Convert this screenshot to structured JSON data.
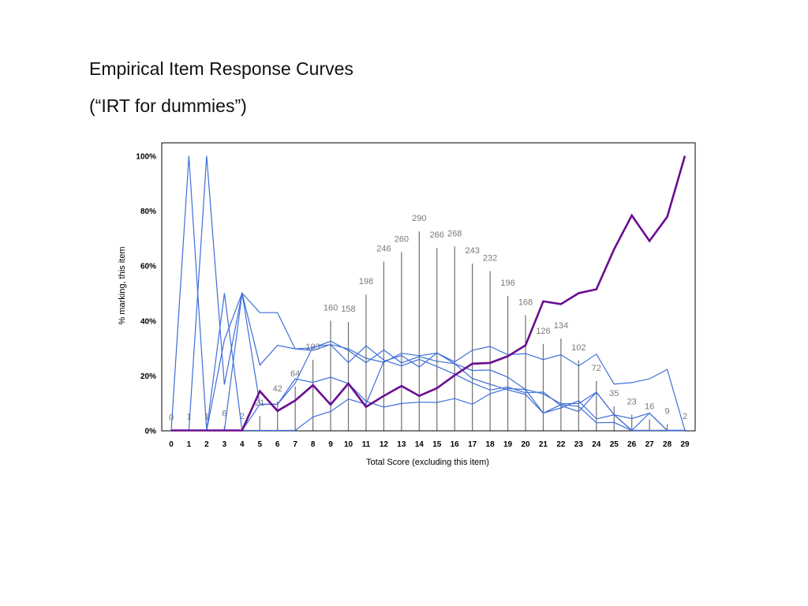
{
  "slide": {
    "title": "Empirical Item Response Curves",
    "subtitle": "(“IRT for dummies”)"
  },
  "chart_data": {
    "type": "line",
    "xlabel": "Total Score (excluding this item)",
    "ylabel": "% marking, this item",
    "ylim": [
      0,
      100
    ],
    "yticks": [
      "0%",
      "20%",
      "40%",
      "60%",
      "80%",
      "100%"
    ],
    "x": [
      0,
      1,
      2,
      3,
      4,
      5,
      6,
      7,
      8,
      9,
      10,
      11,
      12,
      13,
      14,
      15,
      16,
      17,
      18,
      19,
      20,
      21,
      22,
      23,
      24,
      25,
      26,
      27,
      28,
      29
    ],
    "grid": false,
    "legend": "none",
    "counts": {
      "values": [
        0,
        1,
        1,
        6,
        2,
        21,
        42,
        64,
        103,
        160,
        158,
        198,
        246,
        260,
        290,
        266,
        268,
        243,
        232,
        196,
        168,
        126,
        134,
        102,
        72,
        35,
        23,
        16,
        9,
        2
      ],
      "labels": [
        "0",
        "1",
        "1",
        "6",
        "2",
        "21",
        "42",
        "64",
        "103",
        "160",
        "158",
        "198",
        "246",
        "260",
        "290",
        "266",
        "268",
        "243",
        "232",
        "196",
        "168",
        "126",
        "134",
        "102",
        "72",
        "35",
        "23",
        "16",
        "9",
        "2"
      ],
      "color": "#707070"
    },
    "series": [
      {
        "role": "correct-option",
        "color": "#6a0d91",
        "values": [
          0,
          0,
          0,
          0,
          0,
          14.3,
          7.1,
          10.9,
          16.5,
          9.4,
          17.1,
          8.6,
          12.6,
          16.2,
          12.6,
          15.4,
          20.1,
          24.3,
          24.6,
          27,
          31,
          47,
          46,
          50,
          51.4,
          66,
          78.3,
          69,
          77.8,
          100
        ]
      },
      {
        "role": "distractor",
        "color": "#3f6fd8",
        "values": [
          0,
          100,
          0,
          33,
          50,
          23.8,
          31,
          29.7,
          30.1,
          32.5,
          29.1,
          24.7,
          29.3,
          24.6,
          26.9,
          25.2,
          24.3,
          18.9,
          16.8,
          14.8,
          13.1,
          6.3,
          8.2,
          10.8,
          4.2,
          5.7,
          0,
          0,
          0,
          0
        ]
      },
      {
        "role": "distractor",
        "color": "#3f6fd8",
        "values": [
          0,
          0,
          100,
          16.7,
          50,
          9.5,
          9.5,
          17.2,
          30.5,
          31.2,
          24.7,
          30.8,
          25.6,
          23.5,
          25.9,
          23.3,
          20.5,
          17.3,
          14.7,
          15.8,
          13.7,
          14,
          9,
          6.9,
          13.9,
          5.7,
          4.3,
          6.3,
          0,
          0
        ]
      },
      {
        "role": "distractor",
        "color": "#3f6fd8",
        "values": [
          0,
          0,
          0,
          0,
          50,
          42.9,
          42.9,
          29.7,
          29.1,
          31.3,
          29.7,
          26.3,
          24.8,
          28.1,
          27.2,
          28.2,
          25,
          29.2,
          30.6,
          27.6,
          28,
          25.8,
          27.6,
          23.5,
          27.8,
          16.9,
          17.4,
          18.8,
          22.2,
          0
        ]
      },
      {
        "role": "distractor",
        "color": "#3f6fd8",
        "values": [
          0,
          0,
          0,
          50,
          0,
          9.5,
          9.5,
          18.8,
          17.5,
          19.4,
          17.1,
          10.6,
          8.5,
          9.8,
          10.3,
          10.2,
          11.6,
          9.5,
          13.4,
          15.3,
          14.9,
          6.3,
          9.4,
          8.8,
          2.8,
          2.9,
          0,
          6.3,
          0,
          0
        ]
      },
      {
        "role": "distractor",
        "color": "#3f6fd8",
        "values": [
          0,
          0,
          0,
          0,
          0,
          0,
          0,
          0,
          4.9,
          6.9,
          11.4,
          9.6,
          25.2,
          27.3,
          23.1,
          28.2,
          24.3,
          21.8,
          22,
          19.4,
          14.9,
          13.3,
          9.7,
          9.8,
          13.9,
          5.7,
          0,
          0,
          0,
          0
        ]
      }
    ]
  }
}
